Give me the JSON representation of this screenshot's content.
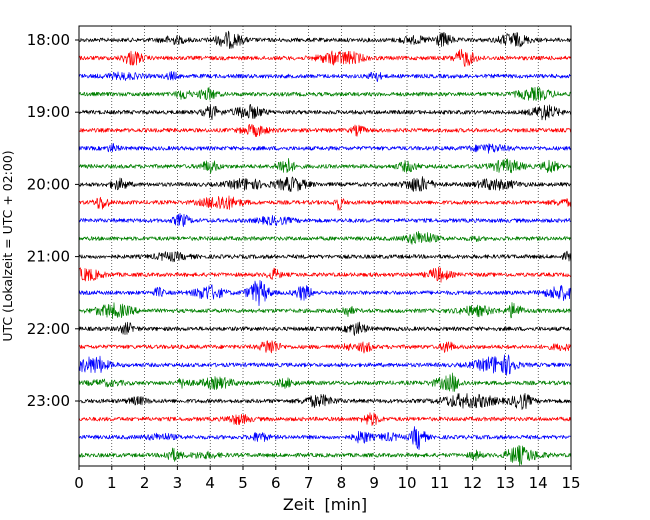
{
  "chart_data": {
    "type": "line",
    "title": "",
    "xlabel": "Zeit  [min]",
    "ylabel": "UTC (Lokalzeit = UTC + 02:00)",
    "xlim": [
      0,
      15
    ],
    "x_ticks": [
      "0",
      "1",
      "2",
      "3",
      "4",
      "5",
      "6",
      "7",
      "8",
      "9",
      "10",
      "11",
      "12",
      "13",
      "14",
      "15"
    ],
    "y_ticks": [
      {
        "label": "18:00",
        "row": 0
      },
      {
        "label": "19:00",
        "row": 4
      },
      {
        "label": "20:00",
        "row": 8
      },
      {
        "label": "21:00",
        "row": 12
      },
      {
        "label": "22:00",
        "row": 16
      },
      {
        "label": "23:00",
        "row": 20
      }
    ],
    "row_interval_min": 15,
    "start_time": "18:00",
    "grid": "vertical dotted lines at each minute",
    "trace_colors": [
      "#000000",
      "#ff0000",
      "#0000ff",
      "#008000"
    ],
    "series": [
      {
        "time": "18:00",
        "color": "#000000"
      },
      {
        "time": "18:15",
        "color": "#ff0000"
      },
      {
        "time": "18:30",
        "color": "#0000ff"
      },
      {
        "time": "18:45",
        "color": "#008000"
      },
      {
        "time": "19:00",
        "color": "#000000"
      },
      {
        "time": "19:15",
        "color": "#ff0000"
      },
      {
        "time": "19:30",
        "color": "#0000ff"
      },
      {
        "time": "19:45",
        "color": "#008000"
      },
      {
        "time": "20:00",
        "color": "#000000"
      },
      {
        "time": "20:15",
        "color": "#ff0000"
      },
      {
        "time": "20:30",
        "color": "#0000ff"
      },
      {
        "time": "20:45",
        "color": "#008000"
      },
      {
        "time": "21:00",
        "color": "#000000"
      },
      {
        "time": "21:15",
        "color": "#ff0000"
      },
      {
        "time": "21:30",
        "color": "#0000ff"
      },
      {
        "time": "21:45",
        "color": "#008000"
      },
      {
        "time": "22:00",
        "color": "#000000"
      },
      {
        "time": "22:15",
        "color": "#ff0000"
      },
      {
        "time": "22:30",
        "color": "#0000ff"
      },
      {
        "time": "22:45",
        "color": "#008000"
      },
      {
        "time": "23:00",
        "color": "#000000"
      },
      {
        "time": "23:15",
        "color": "#ff0000"
      },
      {
        "time": "23:30",
        "color": "#0000ff"
      },
      {
        "time": "23:45",
        "color": "#008000"
      }
    ]
  }
}
